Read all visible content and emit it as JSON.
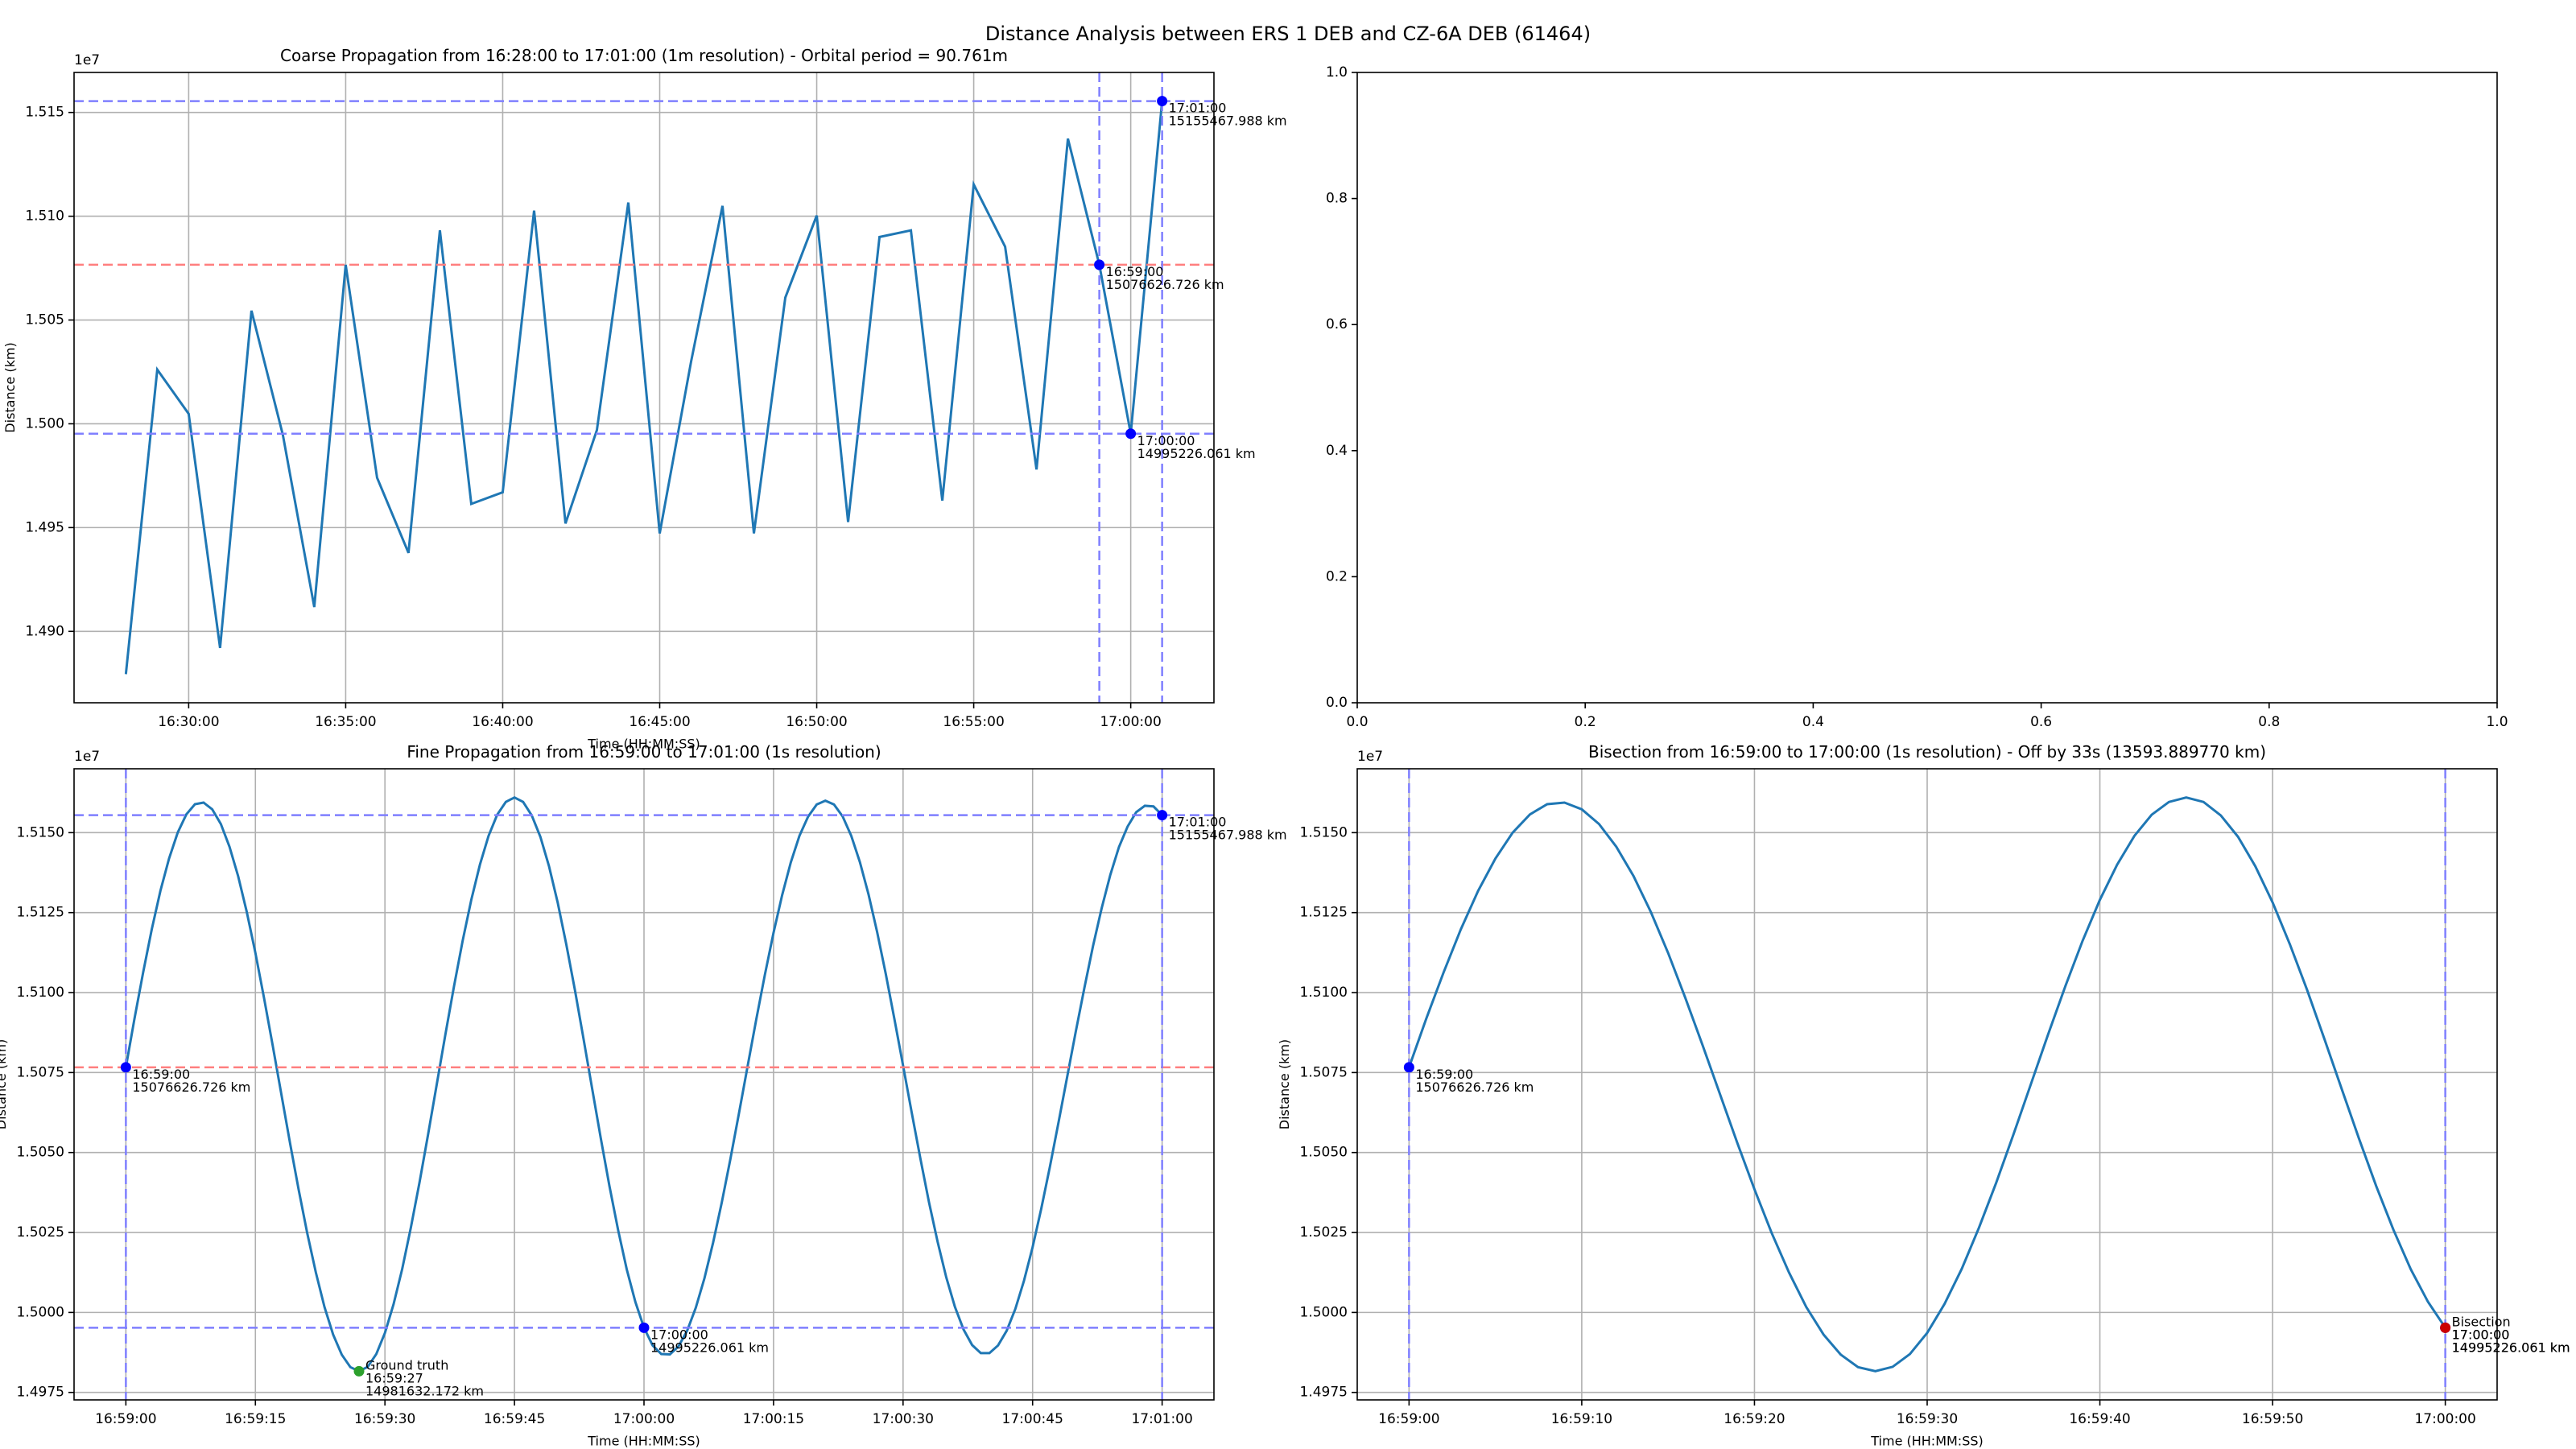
{
  "title": "Distance Analysis between ERS 1 DEB and CZ-6A DEB (61464)",
  "chart_data": [
    {
      "type": "line",
      "title": "Coarse Propagation from 16:28:00 to 17:01:00 (1m resolution) - Orbital period = 90.761m",
      "x_label": "Time (HH:MM:SS)",
      "y_label": "Distance (km)",
      "y_offset_label": "1e7",
      "x": [
        "16:28:00",
        "16:29:00",
        "16:30:00",
        "16:31:00",
        "16:32:00",
        "16:33:00",
        "16:34:00",
        "16:35:00",
        "16:36:00",
        "16:37:00",
        "16:38:00",
        "16:39:00",
        "16:40:00",
        "16:41:00",
        "16:42:00",
        "16:43:00",
        "16:44:00",
        "16:45:00",
        "16:46:00",
        "16:47:00",
        "16:48:00",
        "16:49:00",
        "16:50:00",
        "16:51:00",
        "16:52:00",
        "16:53:00",
        "16:54:00",
        "16:55:00",
        "16:56:00",
        "16:57:00",
        "16:58:00",
        "16:59:00",
        "17:00:00",
        "17:01:00"
      ],
      "series": [
        {
          "color": "#1f77b4",
          "values": [
            14879400,
            15026100,
            15004800,
            14892000,
            15054500,
            14994600,
            14911700,
            15076600,
            14974000,
            14937800,
            15093200,
            14961400,
            14967000,
            15102700,
            14952000,
            14997000,
            15106600,
            14947200,
            15030000,
            15105000,
            14947200,
            15060800,
            15100300,
            14952700,
            15090000,
            15093200,
            14963000,
            15115300,
            15085300,
            14978000,
            15137400,
            15076626.726,
            14995226.061,
            15155467.988
          ]
        }
      ],
      "xlim": [
        "16:26:21",
        "17:02:39"
      ],
      "ylim": [
        14865597,
        15169271
      ],
      "xticks": [
        "16:30:00",
        "16:35:00",
        "16:40:00",
        "16:45:00",
        "16:50:00",
        "16:55:00",
        "17:00:00"
      ],
      "yticks": [
        {
          "value": 14900000,
          "label": "1.490"
        },
        {
          "value": 14950000,
          "label": "1.495"
        },
        {
          "value": 15000000,
          "label": "1.500"
        },
        {
          "value": 15050000,
          "label": "1.505"
        },
        {
          "value": 15100000,
          "label": "1.510"
        },
        {
          "value": 15150000,
          "label": "1.515"
        }
      ],
      "grid": true,
      "hlines": [
        {
          "value": 15155467.988,
          "color": "#7f7fff"
        },
        {
          "value": 14995226.061,
          "color": "#7f7fff"
        },
        {
          "value": 15076626.726,
          "color": "#ff7f7f"
        }
      ],
      "vlines": [
        {
          "value": "16:59:00",
          "color": "#7f7fff"
        },
        {
          "value": "17:01:00",
          "color": "#7f7fff"
        }
      ],
      "annotations": [
        {
          "x": "16:59:00",
          "y": 15076626.726,
          "color": "#0000ff",
          "lines": [
            "16:59:00",
            "15076626.726 km"
          ]
        },
        {
          "x": "17:00:00",
          "y": 14995226.061,
          "color": "#0000ff",
          "lines": [
            "17:00:00",
            "14995226.061 km"
          ]
        },
        {
          "x": "17:01:00",
          "y": 15155467.988,
          "color": "#0000ff",
          "lines": [
            "17:01:00",
            "15155467.988 km"
          ]
        }
      ]
    },
    {
      "type": "line",
      "x": [],
      "series": [],
      "xlim": [
        0,
        1
      ],
      "ylim": [
        0,
        1
      ],
      "xticks": [
        {
          "value": 0,
          "label": "0.0"
        },
        {
          "value": 0.2,
          "label": "0.2"
        },
        {
          "value": 0.4,
          "label": "0.4"
        },
        {
          "value": 0.6,
          "label": "0.6"
        },
        {
          "value": 0.8,
          "label": "0.8"
        },
        {
          "value": 1,
          "label": "1.0"
        }
      ],
      "yticks": [
        {
          "value": 0,
          "label": "0.0"
        },
        {
          "value": 0.2,
          "label": "0.2"
        },
        {
          "value": 0.4,
          "label": "0.4"
        },
        {
          "value": 0.6,
          "label": "0.6"
        },
        {
          "value": 0.8,
          "label": "0.8"
        },
        {
          "value": 1,
          "label": "1.0"
        }
      ],
      "grid": false
    },
    {
      "type": "line",
      "title": "Fine Propagation from 16:59:00 to 17:01:00 (1s resolution)",
      "x_label": "Time (HH:MM:SS)",
      "y_label": "Distance (km)",
      "y_offset_label": "1e7",
      "x": [
        "16:59:00",
        "16:59:01",
        "16:59:02",
        "16:59:03",
        "16:59:04",
        "16:59:05",
        "16:59:06",
        "16:59:07",
        "16:59:08",
        "16:59:09",
        "16:59:10",
        "16:59:11",
        "16:59:12",
        "16:59:13",
        "16:59:14",
        "16:59:15",
        "16:59:16",
        "16:59:17",
        "16:59:18",
        "16:59:19",
        "16:59:20",
        "16:59:21",
        "16:59:22",
        "16:59:23",
        "16:59:24",
        "16:59:25",
        "16:59:26",
        "16:59:27",
        "16:59:28",
        "16:59:29",
        "16:59:30",
        "16:59:31",
        "16:59:32",
        "16:59:33",
        "16:59:34",
        "16:59:35",
        "16:59:36",
        "16:59:37",
        "16:59:38",
        "16:59:39",
        "16:59:40",
        "16:59:41",
        "16:59:42",
        "16:59:43",
        "16:59:44",
        "16:59:45",
        "16:59:46",
        "16:59:47",
        "16:59:48",
        "16:59:49",
        "16:59:50",
        "16:59:51",
        "16:59:52",
        "16:59:53",
        "16:59:54",
        "16:59:55",
        "16:59:56",
        "16:59:57",
        "16:59:58",
        "16:59:59",
        "17:00:00",
        "17:00:01",
        "17:00:02",
        "17:00:03",
        "17:00:04",
        "17:00:05",
        "17:00:06",
        "17:00:07",
        "17:00:08",
        "17:00:09",
        "17:00:10",
        "17:00:11",
        "17:00:12",
        "17:00:13",
        "17:00:14",
        "17:00:15",
        "17:00:16",
        "17:00:17",
        "17:00:18",
        "17:00:19",
        "17:00:20",
        "17:00:21",
        "17:00:22",
        "17:00:23",
        "17:00:24",
        "17:00:25",
        "17:00:26",
        "17:00:27",
        "17:00:28",
        "17:00:29",
        "17:00:30",
        "17:00:31",
        "17:00:32",
        "17:00:33",
        "17:00:34",
        "17:00:35",
        "17:00:36",
        "17:00:37",
        "17:00:38",
        "17:00:39",
        "17:00:40",
        "17:00:41",
        "17:00:42",
        "17:00:43",
        "17:00:44",
        "17:00:45",
        "17:00:46",
        "17:00:47",
        "17:00:48",
        "17:00:49",
        "17:00:50",
        "17:00:51",
        "17:00:52",
        "17:00:53",
        "17:00:54",
        "17:00:55",
        "17:00:56",
        "17:00:57",
        "17:00:58",
        "17:00:59",
        "17:01:00"
      ],
      "series": [
        {
          "color": "#1f77b4",
          "values": [
            15076626.726,
            15091900,
            15106300,
            15119800,
            15131800,
            15141900,
            15150000,
            15155700,
            15158900,
            15159400,
            15157300,
            15152700,
            15145600,
            15136400,
            15125200,
            15112400,
            15098300,
            15083500,
            15068300,
            15053100,
            15038500,
            15024800,
            15012500,
            15001700,
            14993100,
            14986800,
            14982900,
            14981632.172,
            14983000,
            14987000,
            14993600,
            15002600,
            15013600,
            15026500,
            15040600,
            15055700,
            15071300,
            15086900,
            15102000,
            15116200,
            15129000,
            15140000,
            15149000,
            15155600,
            15159600,
            15161000,
            15159600,
            15155400,
            15148700,
            15139500,
            15128200,
            15115100,
            15100800,
            15085500,
            15069900,
            15054400,
            15039500,
            15025800,
            15013500,
            15003300,
            14995226.061,
            14989700,
            14987000,
            14986900,
            14989400,
            14994300,
            15001500,
            15010700,
            15021800,
            15034300,
            15047900,
            15062300,
            15077000,
            15091600,
            15105600,
            15118700,
            15130500,
            15140700,
            15149000,
            15155000,
            15158800,
            15160000,
            15158800,
            15155100,
            15149000,
            15140800,
            15130700,
            15118900,
            15105800,
            15091700,
            15077200,
            15062500,
            15048200,
            15034500,
            15022100,
            15011000,
            15001800,
            14994700,
            14989800,
            14987300,
            14987300,
            14989700,
            14994300,
            15001100,
            15009900,
            15020400,
            15032400,
            15045500,
            15059400,
            15073600,
            15087800,
            15101500,
            15114600,
            15126400,
            15136800,
            15145500,
            15151900,
            15156400,
            15158400,
            15158200,
            15155467.988
          ]
        }
      ],
      "xlim": [
        "16:58:54",
        "17:01:06"
      ],
      "ylim": [
        14972664,
        15169968
      ],
      "xticks": [
        "16:59:00",
        "16:59:15",
        "16:59:30",
        "16:59:45",
        "17:00:00",
        "17:00:15",
        "17:00:30",
        "17:00:45",
        "17:01:00"
      ],
      "yticks": [
        {
          "value": 14975000,
          "label": "1.4975"
        },
        {
          "value": 15000000,
          "label": "1.5000"
        },
        {
          "value": 15025000,
          "label": "1.5025"
        },
        {
          "value": 15050000,
          "label": "1.5050"
        },
        {
          "value": 15075000,
          "label": "1.5075"
        },
        {
          "value": 15100000,
          "label": "1.5100"
        },
        {
          "value": 15125000,
          "label": "1.5125"
        },
        {
          "value": 15150000,
          "label": "1.5150"
        }
      ],
      "grid": true,
      "hlines": [
        {
          "value": 15155467.988,
          "color": "#7f7fff"
        },
        {
          "value": 14995226.061,
          "color": "#7f7fff"
        },
        {
          "value": 15076626.726,
          "color": "#ff7f7f"
        }
      ],
      "vlines": [
        {
          "value": "16:59:00",
          "color": "#7f7fff"
        },
        {
          "value": "17:01:00",
          "color": "#7f7fff"
        }
      ],
      "annotations": [
        {
          "x": "16:59:00",
          "y": 15076626.726,
          "color": "#0000ff",
          "lines": [
            "16:59:00",
            "15076626.726 km"
          ]
        },
        {
          "x": "17:00:00",
          "y": 14995226.061,
          "color": "#0000ff",
          "lines": [
            "17:00:00",
            "14995226.061 km"
          ]
        },
        {
          "x": "17:01:00",
          "y": 15155467.988,
          "color": "#0000ff",
          "lines": [
            "17:01:00",
            "15155467.988 km"
          ]
        },
        {
          "x": "16:59:27",
          "y": 14981632.172,
          "color": "#2ca02c",
          "lines": [
            "Ground truth",
            "16:59:27",
            "14981632.172 km"
          ]
        }
      ]
    },
    {
      "type": "line",
      "title": "Bisection from 16:59:00 to 17:00:00 (1s resolution) - Off by 33s (13593.889770 km)",
      "x_label": "Time (HH:MM:SS)",
      "y_label": "Distance (km)",
      "y_offset_label": "1e7",
      "x": [
        "16:59:00",
        "16:59:01",
        "16:59:02",
        "16:59:03",
        "16:59:04",
        "16:59:05",
        "16:59:06",
        "16:59:07",
        "16:59:08",
        "16:59:09",
        "16:59:10",
        "16:59:11",
        "16:59:12",
        "16:59:13",
        "16:59:14",
        "16:59:15",
        "16:59:16",
        "16:59:17",
        "16:59:18",
        "16:59:19",
        "16:59:20",
        "16:59:21",
        "16:59:22",
        "16:59:23",
        "16:59:24",
        "16:59:25",
        "16:59:26",
        "16:59:27",
        "16:59:28",
        "16:59:29",
        "16:59:30",
        "16:59:31",
        "16:59:32",
        "16:59:33",
        "16:59:34",
        "16:59:35",
        "16:59:36",
        "16:59:37",
        "16:59:38",
        "16:59:39",
        "16:59:40",
        "16:59:41",
        "16:59:42",
        "16:59:43",
        "16:59:44",
        "16:59:45",
        "16:59:46",
        "16:59:47",
        "16:59:48",
        "16:59:49",
        "16:59:50",
        "16:59:51",
        "16:59:52",
        "16:59:53",
        "16:59:54",
        "16:59:55",
        "16:59:56",
        "16:59:57",
        "16:59:58",
        "16:59:59",
        "17:00:00"
      ],
      "series": [
        {
          "color": "#1f77b4",
          "values": [
            15076626.726,
            15091900,
            15106300,
            15119800,
            15131800,
            15141900,
            15150000,
            15155700,
            15158900,
            15159400,
            15157300,
            15152700,
            15145600,
            15136400,
            15125200,
            15112400,
            15098300,
            15083500,
            15068300,
            15053100,
            15038500,
            15024800,
            15012500,
            15001700,
            14993100,
            14986800,
            14982900,
            14981632.172,
            14983000,
            14987000,
            14993600,
            15002600,
            15013600,
            15026500,
            15040600,
            15055700,
            15071300,
            15086900,
            15102000,
            15116200,
            15129000,
            15140000,
            15149000,
            15155600,
            15159600,
            15161000,
            15159600,
            15155400,
            15148700,
            15139500,
            15128200,
            15115100,
            15100800,
            15085500,
            15069900,
            15054400,
            15039500,
            15025800,
            15013500,
            15003300,
            14995226.061
          ]
        }
      ],
      "xlim": [
        "16:58:57",
        "17:00:03"
      ],
      "ylim": [
        14972664,
        15169968
      ],
      "xticks": [
        "16:59:00",
        "16:59:10",
        "16:59:20",
        "16:59:30",
        "16:59:40",
        "16:59:50",
        "17:00:00"
      ],
      "yticks": [
        {
          "value": 14975000,
          "label": "1.4975"
        },
        {
          "value": 15000000,
          "label": "1.5000"
        },
        {
          "value": 15025000,
          "label": "1.5025"
        },
        {
          "value": 15050000,
          "label": "1.5050"
        },
        {
          "value": 15075000,
          "label": "1.5075"
        },
        {
          "value": 15100000,
          "label": "1.5100"
        },
        {
          "value": 15125000,
          "label": "1.5125"
        },
        {
          "value": 15150000,
          "label": "1.5150"
        }
      ],
      "grid": true,
      "hlines": [],
      "vlines": [
        {
          "value": "16:59:00",
          "color": "#7f7fff"
        },
        {
          "value": "17:00:00",
          "color": "#7f7fff"
        }
      ],
      "annotations": [
        {
          "x": "16:59:00",
          "y": 15076626.726,
          "color": "#0000ff",
          "lines": [
            "16:59:00",
            "15076626.726 km"
          ]
        },
        {
          "x": "17:00:00",
          "y": 14995226.061,
          "color": "#0000ff",
          "lines": [
            "17:00:00",
            "14995226.061 km"
          ]
        },
        {
          "x": "17:00:00",
          "y": 14995226.061,
          "color": "#cc0000",
          "lines": [
            "Bisection",
            "17:00:00",
            "14995226.061 km"
          ]
        }
      ]
    }
  ]
}
